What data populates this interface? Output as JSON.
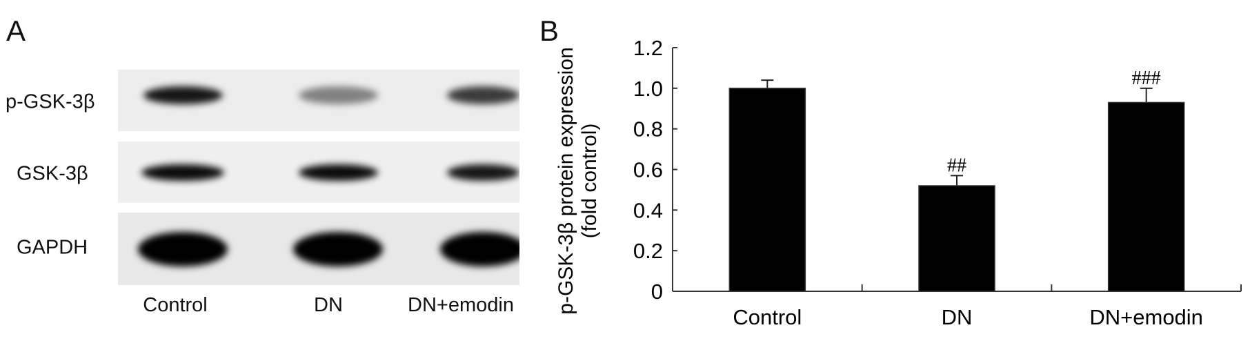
{
  "panel_a": {
    "letter": "A",
    "rows": [
      {
        "label": "p-GSK-3β",
        "band_darkness": [
          0.9,
          0.45,
          0.75
        ]
      },
      {
        "label": "GSK-3β",
        "band_darkness": [
          0.95,
          0.95,
          0.9
        ]
      },
      {
        "label": "GAPDH",
        "band_darkness": [
          1.0,
          1.0,
          1.0
        ]
      }
    ],
    "lanes": [
      "Control",
      "DN",
      "DN+emodin"
    ]
  },
  "panel_b": {
    "letter": "B"
  },
  "chart_data": {
    "type": "bar",
    "categories": [
      "Control",
      "DN",
      "DN+emodin"
    ],
    "values": [
      1.0,
      0.52,
      0.93
    ],
    "error_upper": [
      0.04,
      0.05,
      0.07
    ],
    "annotations": [
      "",
      "##",
      "###"
    ],
    "ylabel_line1": "p-GSK-3β protein expression",
    "ylabel_line2": "(fold control)",
    "xlabel": "",
    "ylim": [
      0,
      1.2
    ],
    "yticks": [
      "0",
      "0.2",
      "0.4",
      "0.6",
      "0.8",
      "1.0",
      "1.2"
    ],
    "bar_color": "#000000",
    "grid": false
  }
}
